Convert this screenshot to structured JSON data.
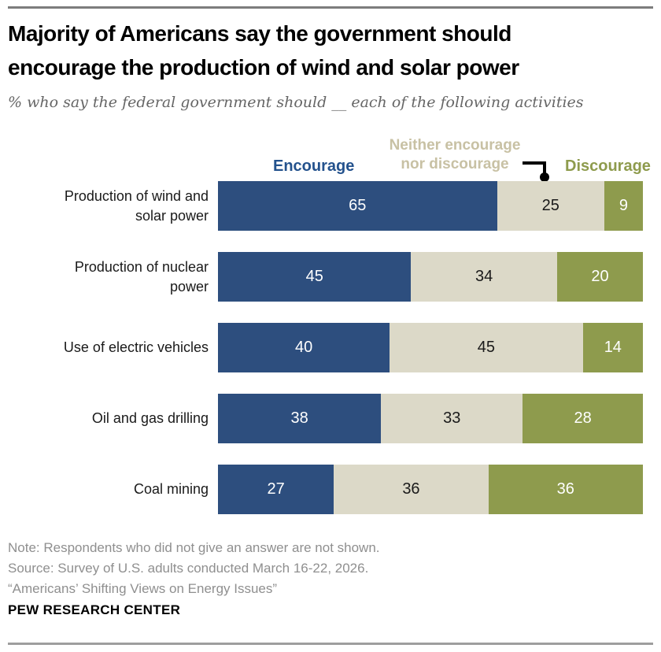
{
  "title": {
    "line1": "Majority of Americans say the government should",
    "line2": "encourage the production of wind and solar power"
  },
  "subtitle": "% who say the federal government should __ each of the following activities",
  "legend": {
    "encourage_label": "Encourage",
    "neither_label_line1": "Neither encourage",
    "neither_label_line2": "nor discourage",
    "discourage_label": "Discourage"
  },
  "colors": {
    "encourage_bar": "#2D4E7E",
    "neither_bar": "#DCD9C8",
    "discourage_bar": "#8E9B4D",
    "encourage_text": "#24528D",
    "neither_text": "#C8C1A4",
    "discourage_text": "#8E9B4D",
    "value_on_dark": "#FFFFFF",
    "value_on_light": "#1A1A1A",
    "connector": "#000000"
  },
  "chart_data": {
    "type": "bar",
    "stacked": true,
    "orientation": "horizontal",
    "unit": "percent",
    "xlim": [
      0,
      100
    ],
    "categories": [
      "Production of wind and solar power",
      "Production of nuclear power",
      "Use of electric vehicles",
      "Oil and gas drilling",
      "Coal mining"
    ],
    "category_display_lines": [
      [
        "Production of wind and",
        "solar power"
      ],
      [
        "Production of nuclear",
        "power"
      ],
      [
        "Use of electric vehicles"
      ],
      [
        "Oil and gas drilling"
      ],
      [
        "Coal mining"
      ]
    ],
    "series": [
      {
        "name": "Encourage",
        "values": [
          65,
          45,
          40,
          38,
          27
        ]
      },
      {
        "name": "Neither encourage nor discourage",
        "values": [
          25,
          34,
          45,
          33,
          36
        ]
      },
      {
        "name": "Discourage",
        "values": [
          9,
          20,
          14,
          28,
          36
        ]
      }
    ]
  },
  "footer": {
    "note": "Note: Respondents who did not give an answer are not shown.",
    "source": "Source: Survey of U.S. adults conducted March 16-22, 2026.",
    "citation": "“Americans’ Shifting Views on Energy Issues”",
    "brand": "PEW RESEARCH CENTER"
  }
}
